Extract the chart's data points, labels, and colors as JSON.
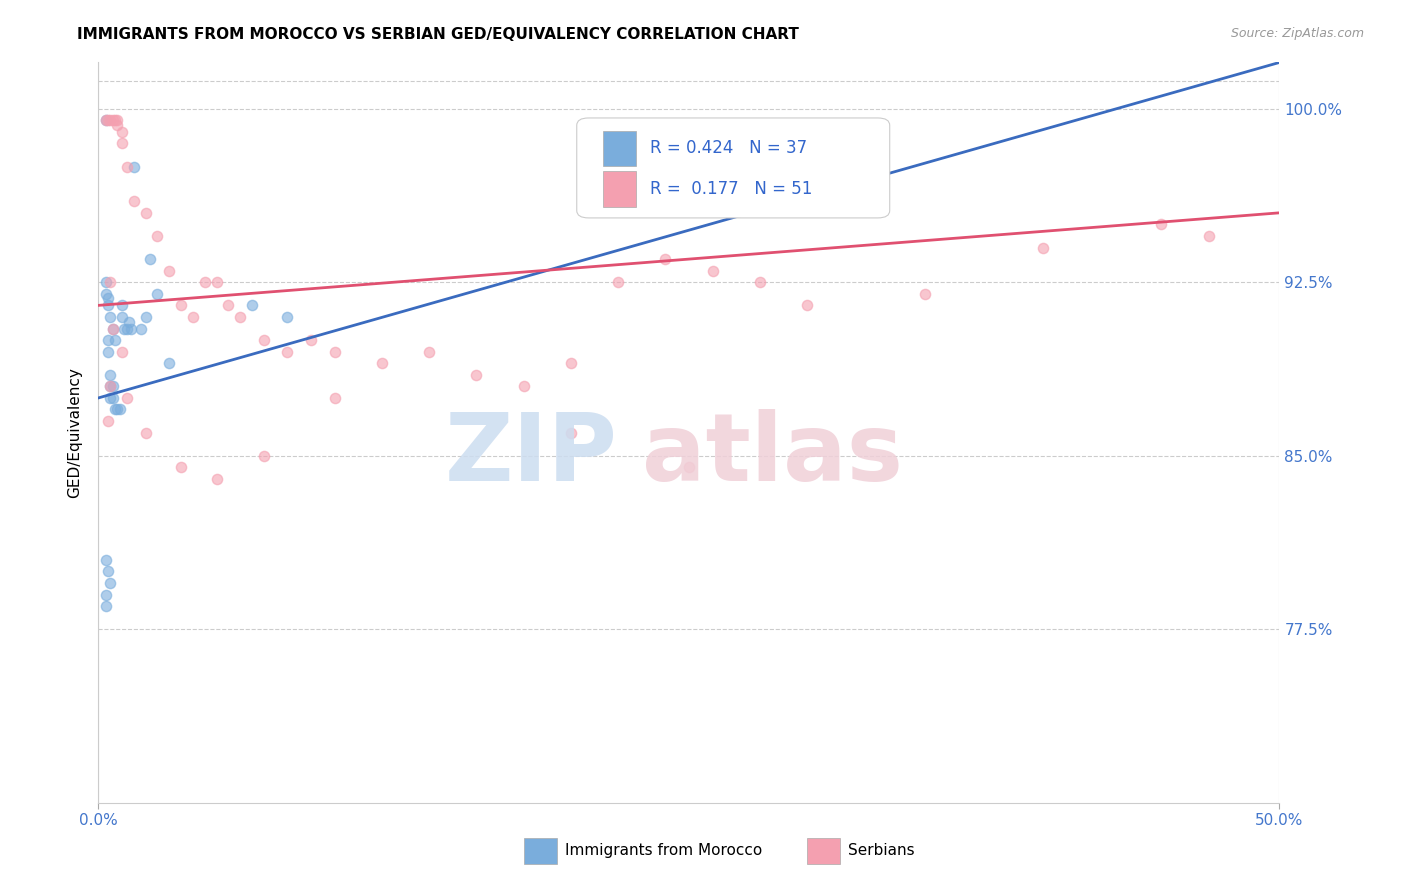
{
  "title": "IMMIGRANTS FROM MOROCCO VS SERBIAN GED/EQUIVALENCY CORRELATION CHART",
  "source": "Source: ZipAtlas.com",
  "ylabel": "GED/Equivalency",
  "ytick_vals": [
    77.5,
    85.0,
    92.5,
    100.0
  ],
  "ytick_labels": [
    "77.5%",
    "85.0%",
    "92.5%",
    "100.0%"
  ],
  "legend_morocco_R": "0.424",
  "legend_morocco_N": "37",
  "legend_serbian_R": "0.177",
  "legend_serbian_N": "51",
  "morocco_color": "#7aaddc",
  "serbian_color": "#f4a0b0",
  "morocco_line_color": "#3a6bbf",
  "serbian_line_color": "#e05070",
  "xlim": [
    0,
    50
  ],
  "ylim": [
    70,
    102
  ],
  "morocco_x": [
    0.3,
    0.4,
    0.4,
    0.5,
    0.5,
    0.5,
    0.6,
    0.6,
    0.7,
    0.8,
    0.9,
    1.0,
    1.0,
    1.1,
    1.2,
    1.3,
    1.4,
    1.5,
    1.8,
    2.0,
    2.2,
    2.5,
    3.0,
    0.3,
    0.3,
    0.4,
    0.4,
    0.5,
    0.6,
    0.7,
    0.3,
    0.4,
    0.5,
    0.3,
    0.3,
    6.5,
    8.0
  ],
  "morocco_y": [
    99.5,
    90.0,
    89.5,
    88.5,
    88.0,
    87.5,
    88.0,
    87.5,
    87.0,
    87.0,
    87.0,
    91.5,
    91.0,
    90.5,
    90.5,
    90.8,
    90.5,
    97.5,
    90.5,
    91.0,
    93.5,
    92.0,
    89.0,
    92.5,
    92.0,
    91.8,
    91.5,
    91.0,
    90.5,
    90.0,
    80.5,
    80.0,
    79.5,
    79.0,
    78.5,
    91.5,
    91.0
  ],
  "serbian_x": [
    0.3,
    0.4,
    0.5,
    0.6,
    0.7,
    0.8,
    0.8,
    1.0,
    1.0,
    1.2,
    1.5,
    2.0,
    2.5,
    3.0,
    3.5,
    4.0,
    4.5,
    5.0,
    5.5,
    6.0,
    7.0,
    8.0,
    9.0,
    10.0,
    12.0,
    14.0,
    16.0,
    18.0,
    20.0,
    22.0,
    24.0,
    26.0,
    28.0,
    30.0,
    35.0,
    40.0,
    45.0,
    47.0,
    0.5,
    0.6,
    1.0,
    2.0,
    3.5,
    5.0,
    7.0,
    10.0,
    20.0,
    25.0,
    0.4,
    0.5,
    1.2
  ],
  "serbian_y": [
    99.5,
    99.5,
    99.5,
    99.5,
    99.5,
    99.5,
    99.3,
    99.0,
    98.5,
    97.5,
    96.0,
    95.5,
    94.5,
    93.0,
    91.5,
    91.0,
    92.5,
    92.5,
    91.5,
    91.0,
    90.0,
    89.5,
    90.0,
    89.5,
    89.0,
    89.5,
    88.5,
    88.0,
    89.0,
    92.5,
    93.5,
    93.0,
    92.5,
    91.5,
    92.0,
    94.0,
    95.0,
    94.5,
    92.5,
    90.5,
    89.5,
    86.0,
    84.5,
    84.0,
    85.0,
    87.5,
    86.0,
    84.5,
    86.5,
    88.0,
    87.5
  ],
  "mor_line_x0": 0,
  "mor_line_y0": 87.5,
  "mor_line_x1": 50,
  "mor_line_y1": 102,
  "ser_line_x0": 0,
  "ser_line_y0": 91.5,
  "ser_line_x1": 50,
  "ser_line_y1": 95.5
}
